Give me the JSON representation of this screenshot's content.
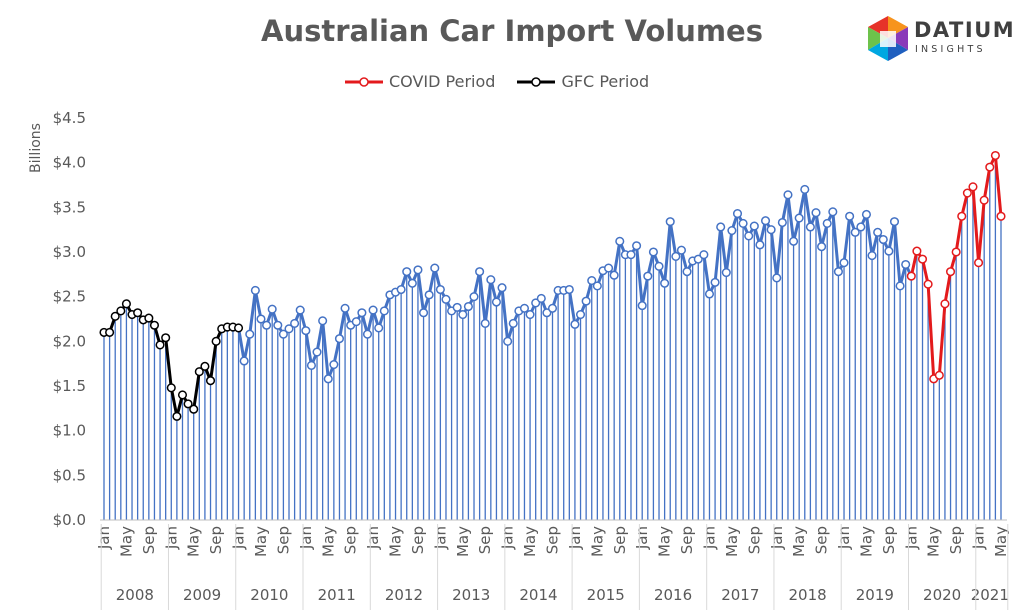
{
  "chart_data": {
    "type": "line",
    "title": "Australian Car Import Volumes",
    "ylabel": "Billions",
    "ylim": [
      0,
      4.5
    ],
    "yticks": [
      "$0.0",
      "$0.5",
      "$1.0",
      "$1.5",
      "$2.0",
      "$2.5",
      "$3.0",
      "$3.5",
      "$4.0",
      "$4.5"
    ],
    "month_ticks": [
      "Jan",
      "May",
      "Sep"
    ],
    "years": [
      "2008",
      "2009",
      "2010",
      "2011",
      "2012",
      "2013",
      "2014",
      "2015",
      "2016",
      "2017",
      "2018",
      "2019",
      "2020",
      "2021"
    ],
    "start": "2008-01",
    "end": "2021-05",
    "legend": [
      {
        "name": "COVID Period",
        "color": "#e31a1c"
      },
      {
        "name": "GFC Period",
        "color": "#000000"
      }
    ],
    "colors": {
      "base": "#4472c4",
      "covid": "#e31a1c",
      "gfc": "#000000"
    },
    "gfc_range": [
      "2008-01",
      "2010-01"
    ],
    "covid_range": [
      "2020-01",
      "2021-05"
    ],
    "series": [
      {
        "year": "2008",
        "values": [
          2.1,
          2.1,
          2.28,
          2.34,
          2.42,
          2.3,
          2.32,
          2.24,
          2.26,
          2.18,
          1.96,
          2.04
        ]
      },
      {
        "year": "2009",
        "values": [
          1.48,
          1.16,
          1.4,
          1.3,
          1.24,
          1.66,
          1.72,
          1.56,
          2.0,
          2.14,
          2.16,
          2.16
        ]
      },
      {
        "year": "2010",
        "values": [
          2.15,
          1.78,
          2.08,
          2.57,
          2.25,
          2.18,
          2.36,
          2.18,
          2.08,
          2.14,
          2.2,
          2.35
        ]
      },
      {
        "year": "2011",
        "values": [
          2.12,
          1.73,
          1.88,
          2.23,
          1.58,
          1.74,
          2.03,
          2.37,
          2.18,
          2.22,
          2.32,
          2.08
        ]
      },
      {
        "year": "2012",
        "values": [
          2.35,
          2.15,
          2.34,
          2.52,
          2.55,
          2.58,
          2.78,
          2.65,
          2.8,
          2.32,
          2.52,
          2.82
        ]
      },
      {
        "year": "2013",
        "values": [
          2.58,
          2.47,
          2.34,
          2.38,
          2.3,
          2.39,
          2.5,
          2.78,
          2.2,
          2.69,
          2.44,
          2.6
        ]
      },
      {
        "year": "2014",
        "values": [
          2.0,
          2.2,
          2.34,
          2.37,
          2.3,
          2.43,
          2.48,
          2.32,
          2.37,
          2.57,
          2.57,
          2.58
        ]
      },
      {
        "year": "2015",
        "values": [
          2.19,
          2.3,
          2.45,
          2.68,
          2.62,
          2.79,
          2.82,
          2.74,
          3.12,
          2.97,
          2.97,
          3.07
        ]
      },
      {
        "year": "2016",
        "values": [
          2.4,
          2.73,
          3.0,
          2.84,
          2.65,
          3.34,
          2.95,
          3.02,
          2.78,
          2.9,
          2.92,
          2.97
        ]
      },
      {
        "year": "2017",
        "values": [
          2.53,
          2.66,
          3.28,
          2.77,
          3.24,
          3.43,
          3.32,
          3.18,
          3.29,
          3.08,
          3.35,
          3.25
        ]
      },
      {
        "year": "2018",
        "values": [
          2.71,
          3.33,
          3.64,
          3.12,
          3.38,
          3.7,
          3.28,
          3.44,
          3.06,
          3.32,
          3.45,
          2.78
        ]
      },
      {
        "year": "2019",
        "values": [
          2.88,
          3.4,
          3.22,
          3.28,
          3.42,
          2.96,
          3.22,
          3.14,
          3.01,
          3.34,
          2.62,
          2.86
        ]
      },
      {
        "year": "2020",
        "values": [
          2.73,
          3.01,
          2.92,
          2.64,
          1.58,
          1.62,
          2.42,
          2.78,
          3.0,
          3.4,
          3.66,
          3.73
        ]
      },
      {
        "year": "2021",
        "values": [
          2.88,
          3.58,
          3.95,
          4.08,
          3.4
        ]
      }
    ]
  }
}
